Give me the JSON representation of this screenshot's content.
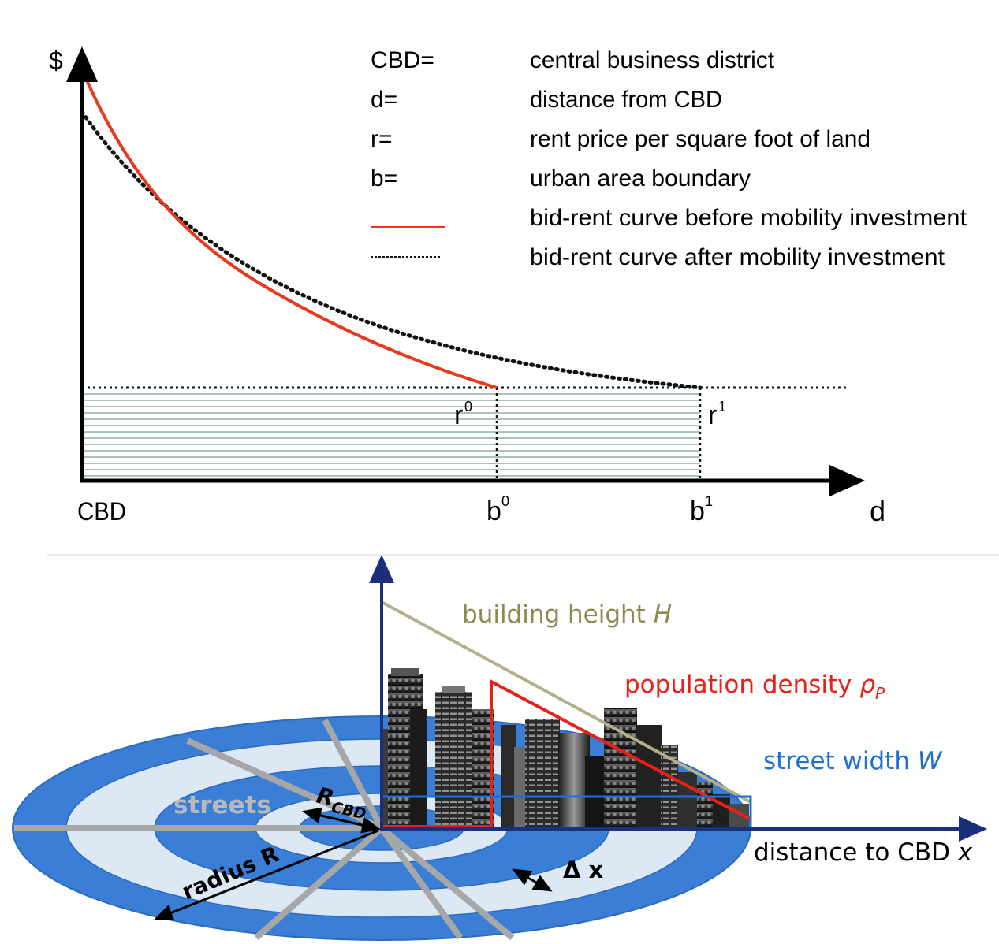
{
  "top_panel": {
    "y_axis_label": "$",
    "x_axis_label": "d",
    "origin_label": "CBD",
    "b0_label": "b",
    "b0_sup": "0",
    "b1_label": "b",
    "b1_sup": "1",
    "r0_label": "r",
    "r0_sup": "0",
    "r1_label": "r",
    "r1_sup": "1",
    "legend": [
      {
        "key": "CBD=",
        "text": "central business district"
      },
      {
        "key": "d=",
        "text": "distance from CBD"
      },
      {
        "key": "r=",
        "text": "rent price per square foot of land"
      },
      {
        "key": "b=",
        "text": "urban area boundary"
      },
      {
        "key": "",
        "text": "bid-rent curve before mobility investment",
        "line": "solid",
        "color": "#e8391f"
      },
      {
        "key": "",
        "text": "bid-rent curve after mobility investment",
        "line": "dotted",
        "color": "#111111"
      }
    ]
  },
  "bottom_panel": {
    "building_height_label": "building height ",
    "building_height_symbol": "H",
    "population_density_label": "population density ",
    "population_density_symbol": "ρ",
    "population_density_sub": "P",
    "street_width_label": "street width ",
    "street_width_symbol": "W",
    "x_axis_label": "distance to CBD ",
    "x_axis_symbol": "x",
    "streets_label": "streets",
    "rcbd_label": "R",
    "rcbd_sub": "CBD",
    "radius_label": "radius R",
    "delta_x_label": "Δ x"
  },
  "colors": {
    "curve_before": "#e8391f",
    "building_height": "#b5b08a",
    "population_density": "#e8201a",
    "street_width": "#1f6fd1",
    "ring_dark": "#3a7fd5",
    "ring_light": "#dde8f5",
    "axis_dark_blue": "#1c2f7a",
    "streets": "#a7a7a7"
  }
}
